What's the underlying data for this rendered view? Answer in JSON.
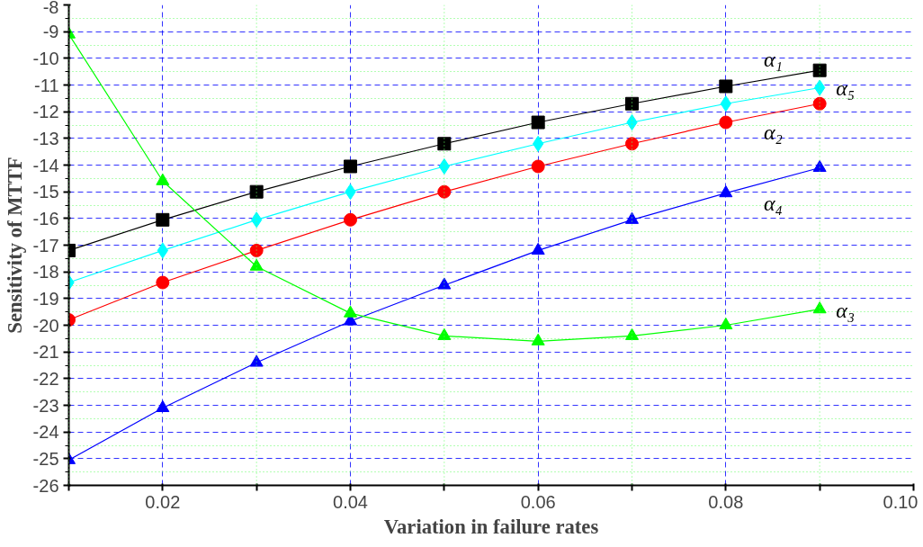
{
  "chart_data": {
    "type": "line",
    "xlabel": "Variation in failure rates",
    "ylabel": "Sensitivity of MTTF",
    "x": [
      0.01,
      0.02,
      0.03,
      0.04,
      0.05,
      0.06,
      0.07,
      0.08,
      0.09
    ],
    "series": [
      {
        "name": "α₁",
        "color": "#000000",
        "marker": "square",
        "values": [
          -17.2,
          -16.05,
          -15.0,
          -14.05,
          -13.2,
          -12.4,
          -11.7,
          -11.05,
          -10.45
        ]
      },
      {
        "name": "α₅",
        "color": "#00ffff",
        "marker": "diamond",
        "values": [
          -18.4,
          -17.2,
          -16.05,
          -15.0,
          -14.05,
          -13.2,
          -12.4,
          -11.7,
          -11.1
        ]
      },
      {
        "name": "α₂",
        "color": "#ff0000",
        "marker": "circle",
        "values": [
          -19.8,
          -18.4,
          -17.2,
          -16.05,
          -15.0,
          -14.05,
          -13.2,
          -12.4,
          -11.7
        ]
      },
      {
        "name": "α₄",
        "color": "#0000ff",
        "marker": "triangle",
        "values": [
          -25.05,
          -23.1,
          -21.4,
          -19.85,
          -18.5,
          -17.2,
          -16.05,
          -15.05,
          -14.1
        ]
      },
      {
        "name": "α₃",
        "color": "#00ff00",
        "marker": "triangle",
        "values": [
          -9.1,
          -14.6,
          -17.8,
          -19.55,
          -20.4,
          -20.6,
          -20.4,
          -20.0,
          -19.4
        ]
      }
    ],
    "xlim": [
      0.01,
      0.1
    ],
    "ylim": [
      -26,
      -8
    ],
    "xticks": [
      {
        "value": 0.01,
        "label": null
      },
      0.02,
      {
        "value": 0.03,
        "label": null
      },
      0.04,
      {
        "value": 0.05,
        "label": null
      },
      0.06,
      {
        "value": 0.07,
        "label": null
      },
      0.08,
      {
        "value": 0.09,
        "label": null
      },
      {
        "value": 0.1,
        "label": "0.10"
      }
    ],
    "yticks": [
      -26,
      -25,
      -24,
      -23,
      -22,
      -21,
      -20,
      -19,
      -18,
      -17,
      -16,
      -15,
      -14,
      -13,
      -12,
      -11,
      -10,
      -9,
      -8
    ],
    "grid": true
  }
}
